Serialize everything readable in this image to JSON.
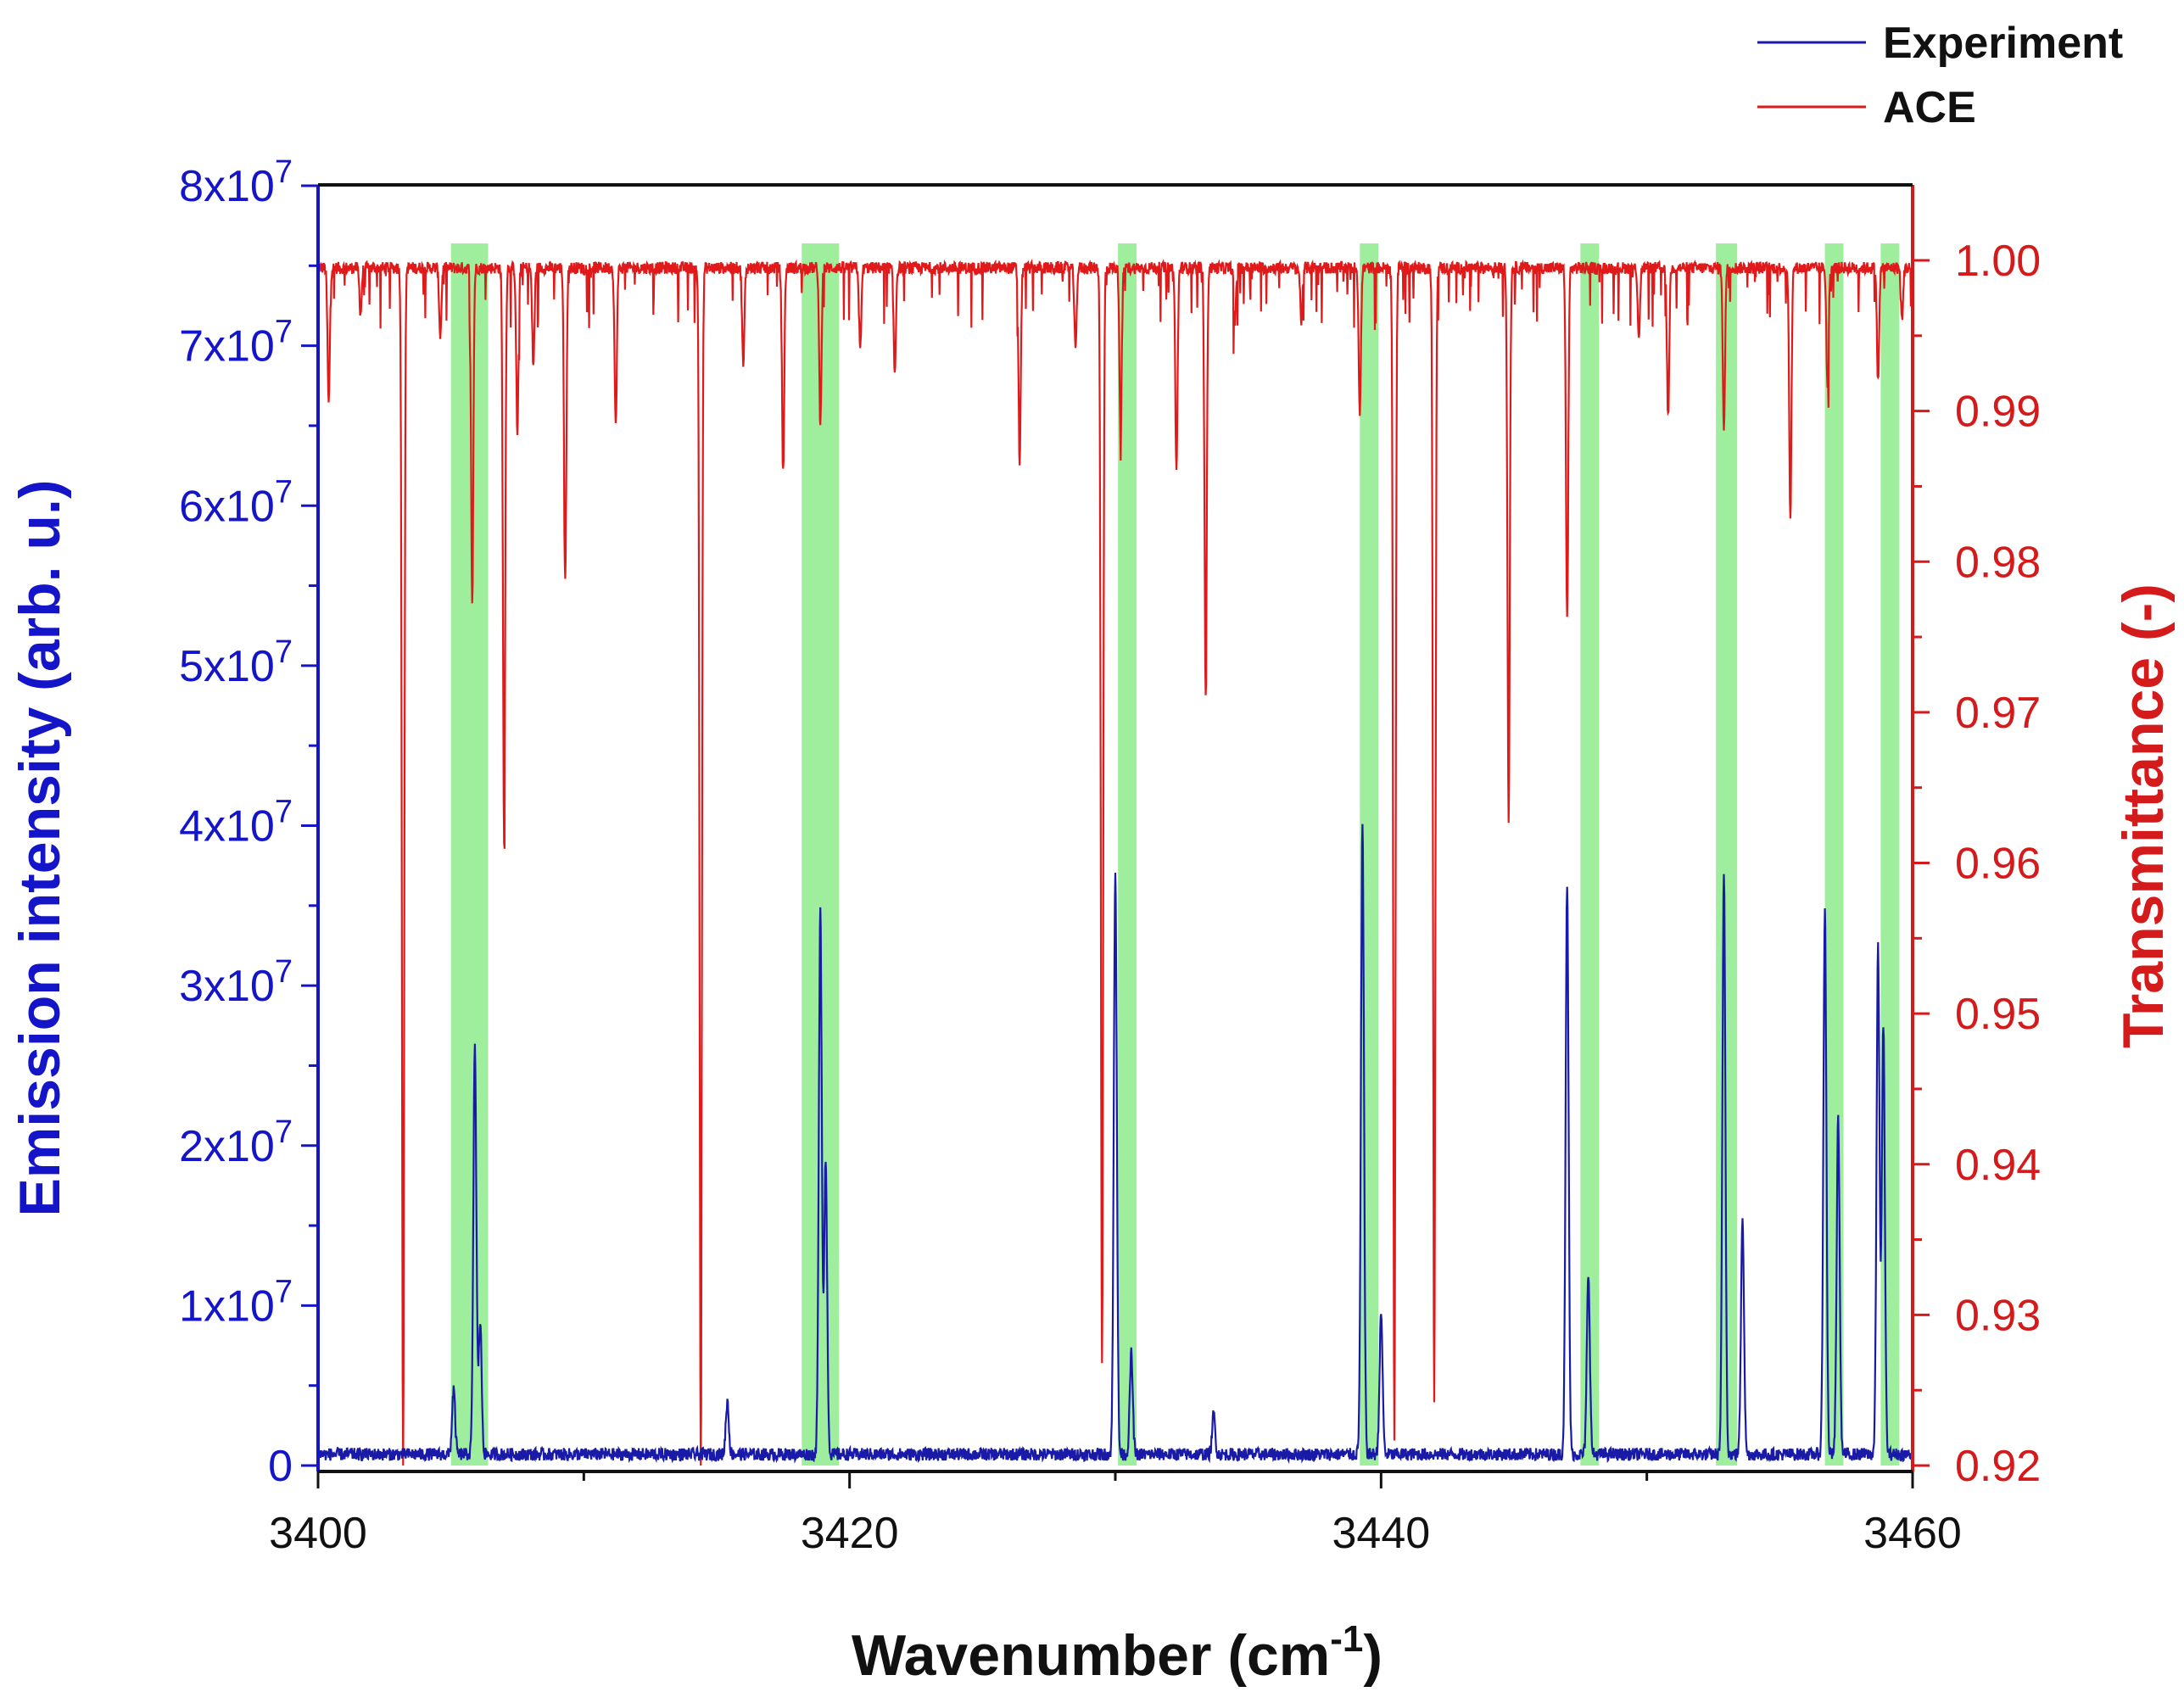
{
  "chart_data": {
    "type": "line",
    "x_axis": {
      "label": "Wavenumber (cm",
      "label_superscript": "-1",
      "label_suffix": ")",
      "range": [
        3400,
        3460
      ],
      "ticks": [
        3400,
        3420,
        3440,
        3460
      ],
      "tick_labels": [
        "3400",
        "3420",
        "3440",
        "3460"
      ]
    },
    "y_axis_left": {
      "label": "Emission intensity (arb. u.)",
      "range": [
        0,
        80000000
      ],
      "ticks": [
        0,
        10000000,
        20000000,
        30000000,
        40000000,
        50000000,
        60000000,
        70000000,
        80000000
      ],
      "tick_mantissas": [
        "0",
        "1x10",
        "2x10",
        "3x10",
        "4x10",
        "5x10",
        "6x10",
        "7x10",
        "8x10"
      ],
      "tick_exponent": "7",
      "color": "#1414c8"
    },
    "y_axis_right": {
      "label": "Transmittance (-)",
      "range": [
        0.92,
        1.005
      ],
      "ticks": [
        0.92,
        0.93,
        0.94,
        0.95,
        0.96,
        0.97,
        0.98,
        0.99,
        1.0
      ],
      "tick_labels": [
        "0.92",
        "0.93",
        "0.94",
        "0.95",
        "0.96",
        "0.97",
        "0.98",
        "0.99",
        "1.00"
      ],
      "color": "#d41a1a"
    },
    "legend": {
      "placement": "top-right-outside",
      "entries": [
        {
          "name": "Experiment",
          "color": "#1a1aa8"
        },
        {
          "name": "ACE",
          "color": "#e01a1a"
        }
      ]
    },
    "highlight_bands": {
      "color": "#7de87d",
      "ranges": [
        [
          3405.0,
          3406.4
        ],
        [
          3418.2,
          3419.6
        ],
        [
          3430.1,
          3430.8
        ],
        [
          3439.2,
          3439.9
        ],
        [
          3447.5,
          3448.2
        ],
        [
          3452.6,
          3453.4
        ],
        [
          3456.7,
          3457.4
        ],
        [
          3458.8,
          3459.5
        ]
      ]
    },
    "series": [
      {
        "name": "Experiment",
        "axis": "left",
        "color": "#1a1aa8",
        "baseline": 700000,
        "noise": 400000,
        "peaks": [
          {
            "x": 3405.1,
            "y": 4800000
          },
          {
            "x": 3405.9,
            "y": 26300000
          },
          {
            "x": 3406.1,
            "y": 9000000
          },
          {
            "x": 3415.4,
            "y": 4000000
          },
          {
            "x": 3418.9,
            "y": 34700000
          },
          {
            "x": 3419.1,
            "y": 19000000
          },
          {
            "x": 3430.0,
            "y": 37400000
          },
          {
            "x": 3430.6,
            "y": 7000000
          },
          {
            "x": 3433.7,
            "y": 3200000
          },
          {
            "x": 3439.3,
            "y": 40100000
          },
          {
            "x": 3440.0,
            "y": 9500000
          },
          {
            "x": 3447.0,
            "y": 36100000
          },
          {
            "x": 3447.8,
            "y": 12000000
          },
          {
            "x": 3452.9,
            "y": 37000000
          },
          {
            "x": 3453.6,
            "y": 15600000
          },
          {
            "x": 3456.7,
            "y": 35000000
          },
          {
            "x": 3457.2,
            "y": 21700000
          },
          {
            "x": 3458.7,
            "y": 32300000
          },
          {
            "x": 3458.9,
            "y": 27500000
          }
        ]
      },
      {
        "name": "ACE",
        "axis": "right",
        "color": "#e01a1a",
        "baseline": 0.9995,
        "noise": 0.0008,
        "dips": [
          {
            "x": 3400.4,
            "y": 0.9905
          },
          {
            "x": 3401.6,
            "y": 0.9965
          },
          {
            "x": 3403.2,
            "y": 0.92
          },
          {
            "x": 3404.6,
            "y": 0.995
          },
          {
            "x": 3405.8,
            "y": 0.9775
          },
          {
            "x": 3407.0,
            "y": 0.9615
          },
          {
            "x": 3407.5,
            "y": 0.9885
          },
          {
            "x": 3408.1,
            "y": 0.993
          },
          {
            "x": 3409.3,
            "y": 0.9785
          },
          {
            "x": 3411.2,
            "y": 0.989
          },
          {
            "x": 3414.4,
            "y": 0.92
          },
          {
            "x": 3416.0,
            "y": 0.993
          },
          {
            "x": 3417.5,
            "y": 0.986
          },
          {
            "x": 3418.9,
            "y": 0.989
          },
          {
            "x": 3420.4,
            "y": 0.994
          },
          {
            "x": 3421.7,
            "y": 0.9925
          },
          {
            "x": 3426.4,
            "y": 0.9865
          },
          {
            "x": 3428.5,
            "y": 0.994
          },
          {
            "x": 3429.5,
            "y": 0.9265
          },
          {
            "x": 3430.2,
            "y": 0.9885
          },
          {
            "x": 3432.3,
            "y": 0.986
          },
          {
            "x": 3433.4,
            "y": 0.9715
          },
          {
            "x": 3434.5,
            "y": 0.996
          },
          {
            "x": 3437.0,
            "y": 0.996
          },
          {
            "x": 3439.2,
            "y": 0.99
          },
          {
            "x": 3440.5,
            "y": 0.9215
          },
          {
            "x": 3442.0,
            "y": 0.9245
          },
          {
            "x": 3444.8,
            "y": 0.963
          },
          {
            "x": 3447.0,
            "y": 0.976
          },
          {
            "x": 3449.7,
            "y": 0.995
          },
          {
            "x": 3450.8,
            "y": 0.9895
          },
          {
            "x": 3452.9,
            "y": 0.989
          },
          {
            "x": 3455.4,
            "y": 0.983
          },
          {
            "x": 3456.8,
            "y": 0.9915
          },
          {
            "x": 3458.7,
            "y": 0.992
          },
          {
            "x": 3459.6,
            "y": 0.996
          }
        ]
      }
    ]
  }
}
